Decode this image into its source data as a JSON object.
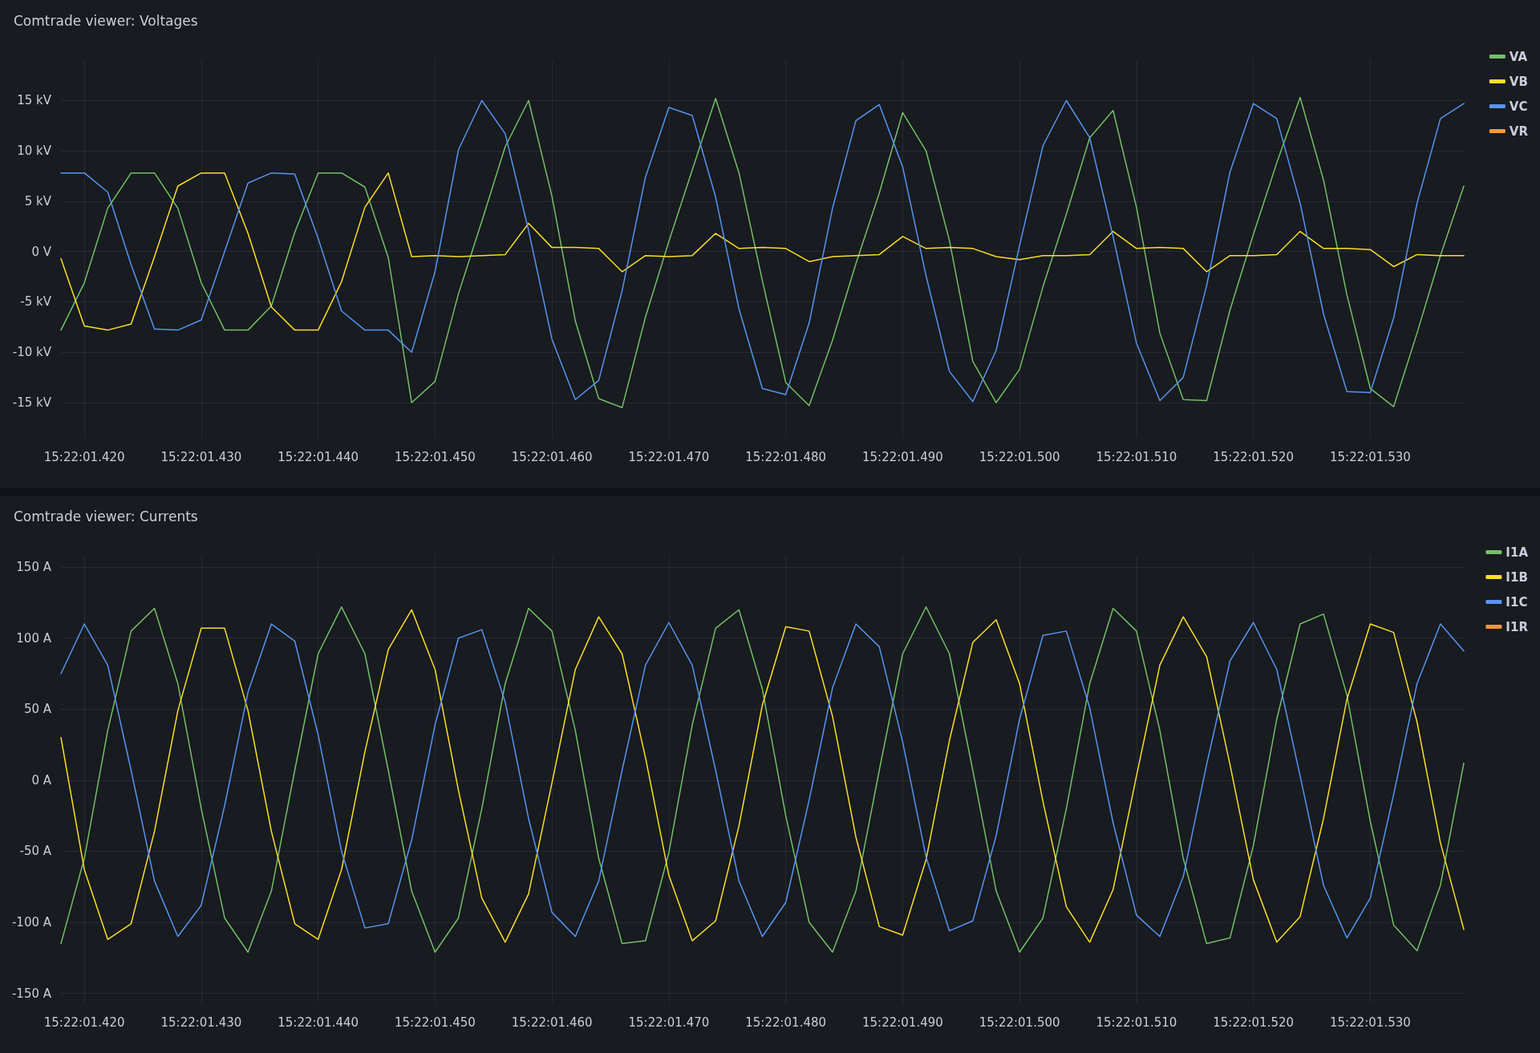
{
  "chart_data": [
    {
      "type": "line",
      "title": "Comtrade viewer: Voltages",
      "legend": "top right",
      "grid": true,
      "marker": "none",
      "line_style": "solid",
      "categories": [
        null,
        "15:22:01.420",
        null,
        null,
        null,
        null,
        "15:22:01.430",
        null,
        null,
        null,
        null,
        "15:22:01.440",
        null,
        null,
        null,
        null,
        "15:22:01.450",
        null,
        null,
        null,
        null,
        "15:22:01.460",
        null,
        null,
        null,
        null,
        "15:22:01.470",
        null,
        null,
        null,
        null,
        "15:22:01.480",
        null,
        null,
        null,
        null,
        "15:22:01.490",
        null,
        null,
        null,
        null,
        "15:22:01.500",
        null,
        null,
        null,
        null,
        "15:22:01.510",
        null,
        null,
        null,
        null,
        "15:22:01.520",
        null,
        null,
        null,
        null,
        "15:22:01.530",
        null,
        null,
        null,
        null
      ],
      "ylim": [
        -18.5,
        19
      ],
      "yticks": [
        {
          "value": -15,
          "label": "-15 kV"
        },
        {
          "value": -10,
          "label": "-10 kV"
        },
        {
          "value": -5,
          "label": "-5 kV"
        },
        {
          "value": 0,
          "label": "0 V"
        },
        {
          "value": 5,
          "label": "5 kV"
        },
        {
          "value": 10,
          "label": "10 kV"
        },
        {
          "value": 15,
          "label": "15 kV"
        }
      ],
      "series": [
        {
          "name": "VA",
          "color": "#73bf69",
          "values": [
            -7.8,
            -3.1,
            4.3,
            7.8,
            7.8,
            4.3,
            -3.1,
            -7.8,
            -7.8,
            -5.4,
            1.9,
            7.8,
            7.8,
            6.4,
            -0.6,
            -15,
            -12.9,
            -4.2,
            3,
            10.4,
            15,
            5.5,
            -6.9,
            -14.6,
            -15.5,
            -6.5,
            1,
            8.1,
            15.2,
            7.8,
            -2.9,
            -13,
            -15.3,
            -8.8,
            -1.2,
            5.8,
            13.8,
            10,
            1.1,
            -10.9,
            -15,
            -11.7,
            -3.5,
            3.7,
            11.3,
            14,
            4.4,
            -8.1,
            -14.7,
            -14.8,
            -5.8,
            1.7,
            8.8,
            15.3,
            7.1,
            -4.3,
            -13.6,
            -15.4,
            -8.1,
            -0.4,
            6.5
          ]
        },
        {
          "name": "VB",
          "color": "#fade2a",
          "values": [
            -0.7,
            -7.4,
            -7.8,
            -7.2,
            -0.5,
            6.5,
            7.8,
            7.8,
            1.8,
            -5.5,
            -7.8,
            -7.8,
            -3,
            4.4,
            7.8,
            -0.5,
            -0.4,
            -0.5,
            -0.4,
            -0.3,
            2.8,
            0.4,
            0.4,
            0.3,
            -2,
            -0.4,
            -0.5,
            -0.4,
            1.8,
            0.3,
            0.4,
            0.3,
            -1,
            -0.5,
            -0.4,
            -0.3,
            1.5,
            0.3,
            0.4,
            0.3,
            -0.5,
            -0.8,
            -0.4,
            -0.4,
            -0.3,
            2,
            0.3,
            0.4,
            0.3,
            -2,
            -0.4,
            -0.4,
            -0.3,
            2,
            0.3,
            0.3,
            0.2,
            -1.5,
            -0.3,
            -0.4,
            -0.4
          ]
        },
        {
          "name": "VC",
          "color": "#5794f2",
          "values": [
            7.8,
            7.8,
            5.9,
            -1.3,
            -7.7,
            -7.8,
            -6.8,
            0,
            6.8,
            7.8,
            7.7,
            1.3,
            -5.9,
            -7.8,
            -7.8,
            -10,
            -2,
            10.1,
            15,
            11.7,
            2.1,
            -8.7,
            -14.7,
            -12.8,
            -3.9,
            7.4,
            14.3,
            13.5,
            5.4,
            -5.7,
            -13.6,
            -14.2,
            -7.1,
            4.3,
            13,
            14.6,
            8.4,
            -2.4,
            -11.9,
            -14.9,
            -9.8,
            0.6,
            10.5,
            15,
            11.3,
            1.5,
            -9.1,
            -14.8,
            -12.5,
            -3.4,
            7.9,
            14.7,
            13.2,
            4.8,
            -6.2,
            -13.9,
            -14,
            -6.6,
            4.8,
            13.2,
            14.7
          ]
        },
        {
          "name": "VR",
          "color": "#ff9830",
          "values": [
            null,
            null,
            null,
            null,
            null,
            null,
            null,
            null,
            null,
            null,
            null,
            null,
            null,
            null,
            null,
            null,
            null,
            null,
            null,
            null,
            null,
            null,
            null,
            null,
            null,
            null,
            null,
            null,
            null,
            null,
            null,
            null,
            null,
            null,
            null,
            null,
            null,
            null,
            null,
            null,
            null,
            null,
            null,
            null,
            null,
            null,
            null,
            null,
            null,
            null,
            null,
            null,
            null,
            null,
            null,
            null,
            null,
            null,
            null,
            null,
            null
          ]
        }
      ]
    },
    {
      "type": "line",
      "title": "Comtrade viewer: Currents",
      "legend": "top right",
      "grid": true,
      "marker": "none",
      "line_style": "solid",
      "categories": [
        null,
        "15:22:01.420",
        null,
        null,
        null,
        null,
        "15:22:01.430",
        null,
        null,
        null,
        null,
        "15:22:01.440",
        null,
        null,
        null,
        null,
        "15:22:01.450",
        null,
        null,
        null,
        null,
        "15:22:01.460",
        null,
        null,
        null,
        null,
        "15:22:01.470",
        null,
        null,
        null,
        null,
        "15:22:01.480",
        null,
        null,
        null,
        null,
        "15:22:01.490",
        null,
        null,
        null,
        null,
        "15:22:01.500",
        null,
        null,
        null,
        null,
        "15:22:01.510",
        null,
        null,
        null,
        null,
        "15:22:01.520",
        null,
        null,
        null,
        null,
        "15:22:01.530",
        null,
        null,
        null,
        null
      ],
      "ylim": [
        -157,
        158
      ],
      "yticks": [
        {
          "value": -150,
          "label": "-150 A"
        },
        {
          "value": -100,
          "label": "-100 A"
        },
        {
          "value": -50,
          "label": "-50 A"
        },
        {
          "value": 0,
          "label": "0 A"
        },
        {
          "value": 50,
          "label": "50 A"
        },
        {
          "value": 100,
          "label": "100 A"
        },
        {
          "value": 150,
          "label": "150 A"
        }
      ],
      "series": [
        {
          "name": "I1A",
          "color": "#73bf69",
          "values": [
            -115,
            -55,
            35,
            105,
            121,
            68,
            -20,
            -97,
            -121,
            -78,
            7,
            89,
            122,
            89,
            7,
            -78,
            -121,
            -97,
            -20,
            68,
            121,
            105,
            35,
            -55,
            -115,
            -113,
            -51,
            39,
            107,
            120,
            64,
            -25,
            -100,
            -121,
            -78,
            7,
            89,
            122,
            89,
            7,
            -78,
            -121,
            -97,
            -20,
            68,
            121,
            105,
            35,
            -55,
            -115,
            -111,
            -46,
            43,
            110,
            117,
            60,
            -29,
            -102,
            -120,
            -74,
            12
          ]
        },
        {
          "name": "I1B",
          "color": "#fade2a",
          "values": [
            30,
            -63,
            -112,
            -101,
            -36,
            49,
            107,
            107,
            49,
            -36,
            -101,
            -112,
            -63,
            20,
            92,
            120,
            78,
            -7,
            -83,
            -114,
            -80,
            -2,
            78,
            115,
            89,
            16,
            -67,
            -113,
            -99,
            -32,
            53,
            108,
            105,
            45,
            -40,
            -103,
            -109,
            -56,
            28,
            97,
            113,
            68,
            -15,
            -89,
            -114,
            -77,
            3,
            81,
            115,
            87,
            11,
            -70,
            -114,
            -96,
            -27,
            57,
            110,
            104,
            41,
            -44,
            -105
          ]
        },
        {
          "name": "I1C",
          "color": "#5794f2",
          "values": [
            75,
            110,
            81,
            7,
            -71,
            -110,
            -88,
            -18,
            62,
            110,
            98,
            32,
            -50,
            -104,
            -101,
            -42,
            39,
            100,
            106,
            55,
            -27,
            -93,
            -110,
            -71,
            7,
            81,
            111,
            81,
            7,
            -71,
            -110,
            -86,
            -14,
            65,
            110,
            94,
            27,
            -54,
            -106,
            -99,
            -39,
            43,
            102,
            105,
            51,
            -30,
            -95,
            -110,
            -68,
            11,
            84,
            111,
            78,
            3,
            -74,
            -111,
            -83,
            -10,
            68,
            110,
            91
          ]
        },
        {
          "name": "I1R",
          "color": "#ff9830",
          "values": [
            null,
            null,
            null,
            null,
            null,
            null,
            null,
            null,
            null,
            null,
            null,
            null,
            null,
            null,
            null,
            null,
            null,
            null,
            null,
            null,
            null,
            null,
            null,
            null,
            null,
            null,
            null,
            null,
            null,
            null,
            null,
            null,
            null,
            null,
            null,
            null,
            null,
            null,
            null,
            null,
            null,
            null,
            null,
            null,
            null,
            null,
            null,
            null,
            null,
            null,
            null,
            null,
            null,
            null,
            null,
            null,
            null,
            null,
            null,
            null,
            null
          ]
        }
      ]
    }
  ]
}
